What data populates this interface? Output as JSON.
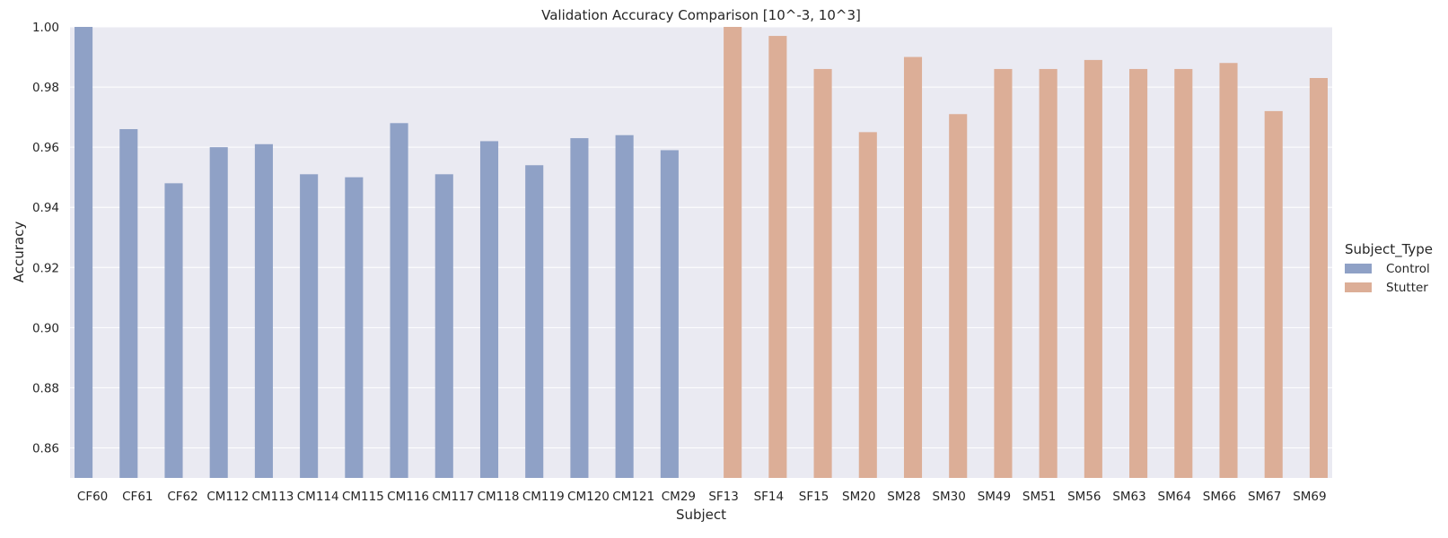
{
  "chart_data": {
    "type": "bar",
    "title": "Validation Accuracy Comparison [10^-3, 10^3]",
    "xlabel": "Subject",
    "ylabel": "Accuracy",
    "ylim": [
      0.85,
      1.0
    ],
    "yticks": [
      "0.86",
      "0.88",
      "0.90",
      "0.92",
      "0.94",
      "0.96",
      "0.98",
      "1.00"
    ],
    "grid": true,
    "legend_position": "right",
    "legend_title": "Subject_Type",
    "categories": [
      "CF60",
      "CF61",
      "CF62",
      "CM112",
      "CM113",
      "CM114",
      "CM115",
      "CM116",
      "CM117",
      "CM118",
      "CM119",
      "CM120",
      "CM121",
      "CM29",
      "SF13",
      "SF14",
      "SF15",
      "SM20",
      "SM28",
      "SM30",
      "SM49",
      "SM51",
      "SM56",
      "SM63",
      "SM64",
      "SM66",
      "SM67",
      "SM69"
    ],
    "series": [
      {
        "name": "Control",
        "color": "#8FA1C6",
        "values": [
          1.0,
          0.966,
          0.948,
          0.96,
          0.961,
          0.951,
          0.95,
          0.968,
          0.951,
          0.962,
          0.954,
          0.963,
          0.964,
          0.959,
          null,
          null,
          null,
          null,
          null,
          null,
          null,
          null,
          null,
          null,
          null,
          null,
          null,
          null
        ]
      },
      {
        "name": "Stutter",
        "color": "#DCAE97",
        "values": [
          null,
          null,
          null,
          null,
          null,
          null,
          null,
          null,
          null,
          null,
          null,
          null,
          null,
          null,
          1.0,
          0.997,
          0.986,
          0.965,
          0.99,
          0.971,
          0.986,
          0.986,
          0.989,
          0.986,
          0.986,
          0.988,
          0.972,
          0.983
        ]
      }
    ]
  }
}
